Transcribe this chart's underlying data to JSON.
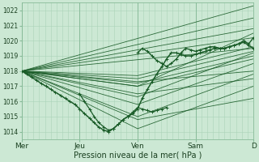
{
  "xlabel": "Pression niveau de la mer( hPa )",
  "bg_color": "#cce8d4",
  "plot_bg_color": "#cce8d4",
  "grid_color_major": "#88bb99",
  "grid_color_minor": "#aad4b8",
  "line_color": "#1a5c28",
  "tick_color": "#1a4020",
  "label_color": "#1a4020",
  "ylim": [
    1013.5,
    1022.5
  ],
  "xlim": [
    0.0,
    4.0
  ],
  "yticks": [
    1014,
    1015,
    1016,
    1017,
    1018,
    1019,
    1020,
    1021,
    1022
  ],
  "xticks_pos": [
    0,
    1,
    2,
    3,
    4
  ],
  "xticks_labels": [
    "Mer",
    "Jeu",
    "Ven",
    "Sam",
    "D"
  ],
  "ensemble_lines": [
    {
      "x": [
        0.0,
        4.0
      ],
      "y": [
        1018.0,
        1022.3
      ]
    },
    {
      "x": [
        0.0,
        4.0
      ],
      "y": [
        1018.0,
        1021.5
      ]
    },
    {
      "x": [
        0.0,
        4.0
      ],
      "y": [
        1018.0,
        1020.8
      ]
    },
    {
      "x": [
        0.0,
        4.0
      ],
      "y": [
        1018.0,
        1020.2
      ]
    },
    {
      "x": [
        0.0,
        4.0
      ],
      "y": [
        1018.0,
        1019.5
      ]
    },
    {
      "x": [
        0.0,
        2.0,
        4.0
      ],
      "y": [
        1018.0,
        1016.3,
        1019.2
      ]
    },
    {
      "x": [
        0.0,
        2.0,
        4.0
      ],
      "y": [
        1018.0,
        1015.8,
        1018.5
      ]
    },
    {
      "x": [
        0.0,
        2.0,
        4.0
      ],
      "y": [
        1018.0,
        1015.0,
        1017.8
      ]
    },
    {
      "x": [
        0.0,
        2.0,
        4.0
      ],
      "y": [
        1018.0,
        1014.2,
        1017.0
      ]
    },
    {
      "x": [
        0.0,
        2.0,
        4.0
      ],
      "y": [
        1018.0,
        1014.8,
        1016.2
      ]
    },
    {
      "x": [
        0.0,
        2.0,
        4.0
      ],
      "y": [
        1018.0,
        1016.5,
        1017.5
      ]
    },
    {
      "x": [
        0.0,
        2.0,
        4.0
      ],
      "y": [
        1018.0,
        1017.0,
        1018.8
      ]
    },
    {
      "x": [
        0.0,
        2.0,
        4.0
      ],
      "y": [
        1018.0,
        1017.2,
        1019.0
      ]
    },
    {
      "x": [
        0.0,
        2.0,
        4.0
      ],
      "y": [
        1018.0,
        1017.5,
        1019.3
      ]
    },
    {
      "x": [
        0.0,
        2.0,
        4.0
      ],
      "y": [
        1018.0,
        1017.7,
        1019.6
      ]
    },
    {
      "x": [
        0.0,
        2.0,
        4.0
      ],
      "y": [
        1018.0,
        1017.3,
        1018.0
      ]
    },
    {
      "x": [
        0.0,
        2.0,
        4.0
      ],
      "y": [
        1018.0,
        1017.0,
        1020.5
      ]
    }
  ],
  "main_line_x": [
    0.0,
    0.08,
    0.17,
    0.25,
    0.33,
    0.42,
    0.5,
    0.58,
    0.67,
    0.75,
    0.83,
    0.92,
    1.0,
    1.08,
    1.17,
    1.25,
    1.33,
    1.42,
    1.5,
    1.58,
    1.67,
    1.75,
    1.83,
    1.92,
    2.0,
    2.08,
    2.17,
    2.25,
    2.33,
    2.42,
    2.5,
    2.58,
    2.67,
    2.75,
    2.83,
    2.92,
    3.0,
    3.08,
    3.17,
    3.25,
    3.33,
    3.42,
    3.5,
    3.58,
    3.67,
    3.75,
    3.83,
    3.92,
    4.0
  ],
  "main_line_y": [
    1018.0,
    1017.8,
    1017.6,
    1017.4,
    1017.2,
    1017.0,
    1016.8,
    1016.6,
    1016.4,
    1016.2,
    1016.0,
    1015.8,
    1015.5,
    1015.2,
    1014.9,
    1014.6,
    1014.3,
    1014.1,
    1014.0,
    1014.2,
    1014.5,
    1014.8,
    1015.0,
    1015.2,
    1015.5,
    1016.2,
    1016.8,
    1017.3,
    1017.8,
    1018.3,
    1018.8,
    1019.2,
    1019.2,
    1019.1,
    1019.0,
    1019.0,
    1019.1,
    1019.2,
    1019.3,
    1019.4,
    1019.5,
    1019.5,
    1019.5,
    1019.6,
    1019.7,
    1019.8,
    1019.9,
    1019.7,
    1019.5
  ],
  "upper_noisy_x": [
    2.0,
    2.08,
    2.17,
    2.25,
    2.33,
    2.42,
    2.5,
    2.58,
    2.67,
    2.75,
    2.83,
    2.92,
    3.0,
    3.08,
    3.17,
    3.25,
    3.33,
    3.42,
    3.5,
    3.58,
    3.67,
    3.75,
    3.83,
    3.92,
    4.0
  ],
  "upper_noisy_y": [
    1019.2,
    1019.5,
    1019.3,
    1019.0,
    1018.7,
    1018.5,
    1018.3,
    1018.5,
    1018.8,
    1019.2,
    1019.5,
    1019.4,
    1019.3,
    1019.4,
    1019.5,
    1019.6,
    1019.6,
    1019.5,
    1019.5,
    1019.6,
    1019.7,
    1019.8,
    1020.0,
    1019.8,
    1020.2
  ],
  "lower_dip_x": [
    1.0,
    1.08,
    1.17,
    1.25,
    1.33,
    1.42,
    1.5,
    1.58,
    1.67,
    1.75,
    1.83,
    1.92,
    2.0,
    2.08,
    2.17,
    2.25,
    2.33,
    2.42,
    2.5
  ],
  "lower_dip_y": [
    1016.5,
    1016.0,
    1015.5,
    1015.0,
    1014.6,
    1014.3,
    1014.1,
    1014.2,
    1014.5,
    1014.8,
    1015.0,
    1015.3,
    1015.6,
    1015.5,
    1015.4,
    1015.3,
    1015.4,
    1015.5,
    1015.6
  ]
}
